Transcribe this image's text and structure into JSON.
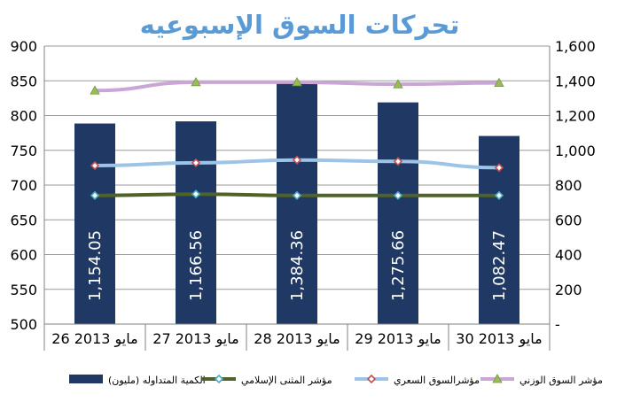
{
  "chart_data": {
    "type": "bar",
    "title": "تحركات السوق الإسبوعيه",
    "categories": [
      "26 مايو 2013",
      "27 مايو 2013",
      "28 مايو 2013",
      "29 مايو 2013",
      "30 مايو 2013"
    ],
    "y_left": {
      "min": 500,
      "max": 900,
      "step": 50,
      "tick_labels": [
        "500",
        "550",
        "600",
        "650",
        "700",
        "750",
        "800",
        "850",
        "900"
      ]
    },
    "y_right": {
      "min": 0,
      "max": 1600,
      "step": 200,
      "tick_labels": [
        "-",
        "200",
        "400",
        "600",
        "800",
        "1,000",
        "1,200",
        "1,400",
        "1,600"
      ]
    },
    "grid": true,
    "legend_position": "bottom",
    "series": [
      {
        "name": "الكمية المتداوله (مليون)",
        "kind": "bar",
        "axis": "right",
        "color": "#1f3864",
        "values": [
          1154.05,
          1166.56,
          1384.36,
          1275.66,
          1082.47
        ],
        "labels": [
          "1,154.05",
          "1,166.56",
          "1,384.36",
          "1,275.66",
          "1,082.47"
        ]
      },
      {
        "name": "مؤشر المثنى الإسلامي",
        "kind": "line",
        "axis": "left",
        "color": "#4f6228",
        "marker": "diamond",
        "marker_color": "#4bacc6",
        "values": [
          685,
          687,
          685,
          685,
          685
        ]
      },
      {
        "name": "مؤشرالسوق السعري",
        "kind": "line",
        "axis": "left",
        "color": "#9dc3e6",
        "marker": "diamond",
        "marker_color": "#c0504d",
        "values": [
          728,
          732,
          736,
          734,
          725
        ]
      },
      {
        "name": "مؤشر السوق الوزني",
        "kind": "line",
        "axis": "left",
        "color": "#c9a6d6",
        "marker": "triangle",
        "marker_color": "#9bbb59",
        "values": [
          836,
          848,
          848,
          845,
          847
        ]
      }
    ]
  }
}
